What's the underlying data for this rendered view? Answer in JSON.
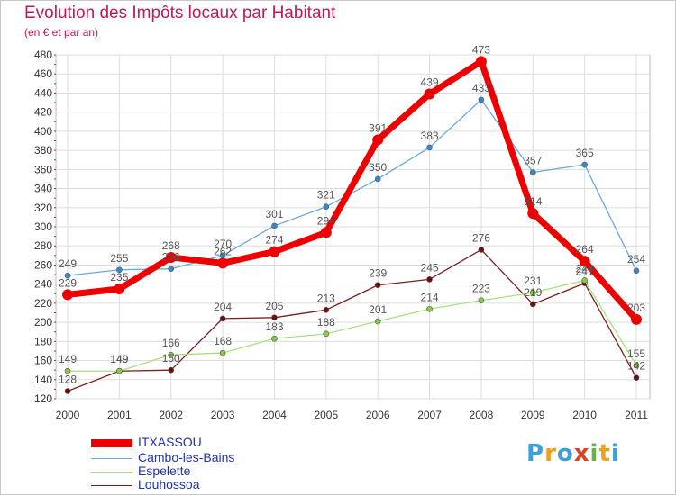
{
  "header": {
    "title": "Evolution des Impôts locaux par Habitant",
    "subtitle": "(en € et par an)"
  },
  "logo": {
    "letters": [
      "P",
      "r",
      "o",
      "x",
      "i",
      "t",
      "i"
    ],
    "colors": [
      "#3fa0d8",
      "#f0a020",
      "#3fa0d8",
      "#e04020",
      "#6ab04c",
      "#f0a020",
      "#3fa0d8"
    ]
  },
  "chart_data": {
    "type": "line",
    "title": "Evolution des Impôts locaux par Habitant",
    "subtitle": "(en € et par an)",
    "xlabel": "",
    "ylabel": "",
    "x": [
      "2000",
      "2001",
      "2002",
      "2003",
      "2004",
      "2005",
      "2006",
      "2007",
      "2008",
      "2009",
      "2010",
      "2011"
    ],
    "ylim": [
      120,
      480
    ],
    "yticks": [
      "120",
      "140",
      "160",
      "180",
      "200",
      "220",
      "240",
      "260",
      "280",
      "300",
      "320",
      "340",
      "360",
      "380",
      "400",
      "420",
      "440",
      "460",
      "480"
    ],
    "grid": true,
    "legend_position": "bottom-left",
    "series": [
      {
        "name": "ITXASSOU",
        "color": "#ee0000",
        "marker": "#ee0000",
        "values": [
          229,
          235,
          268,
          262,
          274,
          294,
          391,
          439,
          473,
          314,
          264,
          203
        ],
        "labels": [
          "229",
          "235",
          "268",
          "262",
          "274",
          "294",
          "391",
          "439",
          "473",
          "314",
          "264",
          "203"
        ]
      },
      {
        "name": "Cambo-les-Bains",
        "color": "#6aa8d8",
        "marker": "#3a88cc",
        "values": [
          249,
          255,
          256,
          270,
          301,
          321,
          350,
          383,
          433,
          357,
          365,
          254
        ],
        "labels": [
          "249",
          "255",
          "256",
          "270",
          "301",
          "321",
          "350",
          "383",
          "433",
          "357",
          "365",
          "254"
        ]
      },
      {
        "name": "Espelette",
        "color": "#a8e080",
        "marker": "#88cc44",
        "values": [
          149,
          149,
          166,
          168,
          183,
          188,
          201,
          214,
          223,
          231,
          244,
          155
        ],
        "labels": [
          "149",
          "149",
          "166",
          "168",
          "183",
          "188",
          "201",
          "214",
          "223",
          "231",
          "244",
          "155"
        ]
      },
      {
        "name": "Louhossoa",
        "color": "#7a1f1f",
        "marker": "#6a1010",
        "values": [
          128,
          149,
          150,
          204,
          205,
          213,
          239,
          245,
          276,
          219,
          241,
          142
        ],
        "labels": [
          "128",
          "149",
          "150",
          "204",
          "205",
          "213",
          "239",
          "245",
          "276",
          "219",
          "241",
          "142"
        ]
      }
    ]
  }
}
